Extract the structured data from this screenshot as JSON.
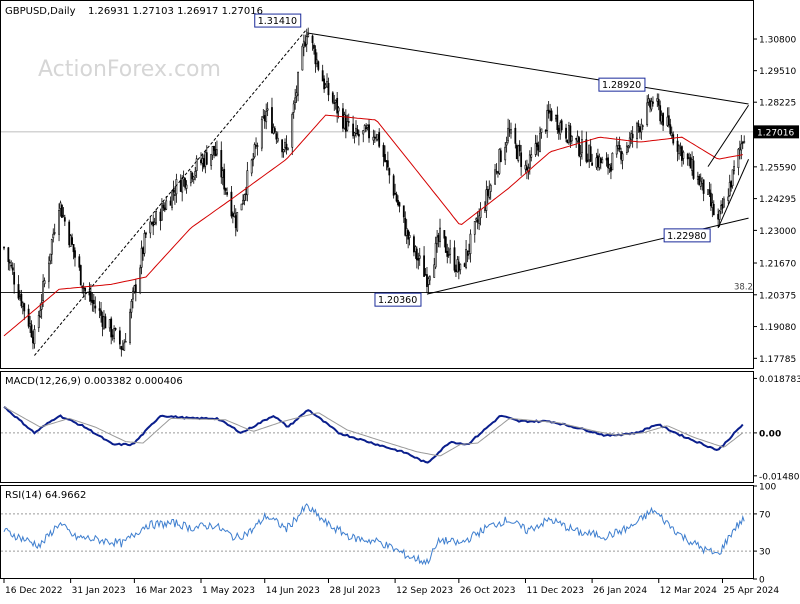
{
  "header": {
    "symbol": "GBPUSD,Daily",
    "ohlc": "1.26931 1.27103 1.26917 1.27016"
  },
  "watermark": "ActionForex.com",
  "colors": {
    "candle": "#000000",
    "sma": "#d40000",
    "macd": "#0a1e8c",
    "signal": "#9a9a9a",
    "rsi": "#3f7fcf",
    "trendline": "#000000",
    "grid": "#c8c8c8",
    "label_border": "#1a2a9a",
    "price_tag_bg": "#000000"
  },
  "chart_data": [
    {
      "type": "candlestick",
      "panel": "price",
      "ylim": [
        1.1735,
        1.3235
      ],
      "y_ticks": [
        "1.30800",
        "1.29510",
        "1.28225",
        "1.26935",
        "1.25590",
        "1.24295",
        "1.23000",
        "1.21670",
        "1.20375",
        "1.19080",
        "1.17785"
      ],
      "current_price": "1.27016",
      "current_value": 1.27016,
      "retracement_label": "38.2",
      "retracement_level": 1.2047,
      "labels": [
        {
          "text": "1.31410",
          "date": "2023-07-13",
          "value": 1.3141
        },
        {
          "text": "1.28920",
          "date": "2024-03-08",
          "value": 1.2892
        },
        {
          "text": "1.20360",
          "date": "2023-10-04",
          "value": 1.2036
        },
        {
          "text": "1.22980",
          "date": "2024-04-22",
          "value": 1.2298
        }
      ],
      "price_anchors": [
        [
          "2022-12-16",
          1.223
        ],
        [
          "2023-01-06",
          1.186
        ],
        [
          "2023-01-23",
          1.242
        ],
        [
          "2023-02-10",
          1.205
        ],
        [
          "2023-03-08",
          1.182
        ],
        [
          "2023-03-24",
          1.228
        ],
        [
          "2023-04-14",
          1.248
        ],
        [
          "2023-05-10",
          1.263
        ],
        [
          "2023-05-25",
          1.234
        ],
        [
          "2023-06-15",
          1.278
        ],
        [
          "2023-06-29",
          1.262
        ],
        [
          "2023-07-13",
          1.312
        ],
        [
          "2023-07-26",
          1.288
        ],
        [
          "2023-08-14",
          1.268
        ],
        [
          "2023-08-30",
          1.27
        ],
        [
          "2023-09-22",
          1.225
        ],
        [
          "2023-10-04",
          1.211
        ],
        [
          "2023-10-13",
          1.227
        ],
        [
          "2023-10-27",
          1.213
        ],
        [
          "2023-11-15",
          1.245
        ],
        [
          "2023-11-29",
          1.27
        ],
        [
          "2023-12-12",
          1.254
        ],
        [
          "2023-12-28",
          1.278
        ],
        [
          "2024-01-17",
          1.264
        ],
        [
          "2024-02-05",
          1.256
        ],
        [
          "2024-02-22",
          1.267
        ],
        [
          "2024-03-08",
          1.283
        ],
        [
          "2024-03-28",
          1.262
        ],
        [
          "2024-04-12",
          1.247
        ],
        [
          "2024-04-22",
          1.233
        ],
        [
          "2024-05-03",
          1.254
        ],
        [
          "2024-05-10",
          1.27
        ]
      ],
      "sma_anchors": [
        [
          "2022-12-16",
          1.187
        ],
        [
          "2023-01-23",
          1.206
        ],
        [
          "2023-02-28",
          1.208
        ],
        [
          "2023-03-24",
          1.211
        ],
        [
          "2023-04-24",
          1.231
        ],
        [
          "2023-05-25",
          1.244
        ],
        [
          "2023-06-29",
          1.259
        ],
        [
          "2023-07-26",
          1.277
        ],
        [
          "2023-08-30",
          1.275
        ],
        [
          "2023-09-22",
          1.258
        ],
        [
          "2023-10-27",
          1.232
        ],
        [
          "2023-11-29",
          1.247
        ],
        [
          "2023-12-28",
          1.262
        ],
        [
          "2024-01-31",
          1.268
        ],
        [
          "2024-02-28",
          1.266
        ],
        [
          "2024-03-28",
          1.268
        ],
        [
          "2024-04-22",
          1.259
        ],
        [
          "2024-05-10",
          1.261
        ]
      ],
      "trendlines": [
        {
          "from": [
            "2023-07-13",
            1.3105
          ],
          "to": [
            "2024-05-13",
            1.2815
          ]
        },
        {
          "from": [
            "2023-10-04",
            1.204
          ],
          "to": [
            "2024-05-13",
            1.235
          ]
        },
        {
          "from": [
            "2023-01-06",
            1.179
          ],
          "to": [
            "2023-07-13",
            1.312
          ],
          "style": "dashed"
        },
        {
          "from": [
            "2024-04-15",
            1.256
          ],
          "to": [
            "2024-05-13",
            1.281
          ]
        },
        {
          "from": [
            "2024-04-22",
            1.231
          ],
          "to": [
            "2024-05-13",
            1.259
          ]
        }
      ]
    },
    {
      "type": "line",
      "panel": "macd",
      "title": "MACD(12,26,9) 0.003382 0.000406",
      "ylim": [
        -0.01728,
        0.021
      ],
      "y_ticks": [
        "0.018783",
        "0.00",
        "-0.014806"
      ],
      "tick_values": [
        0.018783,
        0.0,
        -0.014806
      ],
      "zero_label": "0.00",
      "series": [
        {
          "name": "MACD",
          "anchors": [
            [
              "2022-12-16",
              0.009
            ],
            [
              "2023-01-06",
              0.0
            ],
            [
              "2023-01-23",
              0.006
            ],
            [
              "2023-02-10",
              0.002
            ],
            [
              "2023-03-01",
              -0.004
            ],
            [
              "2023-03-15",
              -0.004
            ],
            [
              "2023-04-03",
              0.006
            ],
            [
              "2023-04-24",
              0.005
            ],
            [
              "2023-05-12",
              0.005
            ],
            [
              "2023-05-29",
              0.0
            ],
            [
              "2023-06-20",
              0.006
            ],
            [
              "2023-06-30",
              0.002
            ],
            [
              "2023-07-14",
              0.008
            ],
            [
              "2023-08-04",
              0.0
            ],
            [
              "2023-08-24",
              -0.003
            ],
            [
              "2023-09-20",
              -0.007
            ],
            [
              "2023-10-04",
              -0.0105
            ],
            [
              "2023-10-20",
              -0.003
            ],
            [
              "2023-11-01",
              -0.004
            ],
            [
              "2023-11-24",
              0.006
            ],
            [
              "2023-12-06",
              0.004
            ],
            [
              "2023-12-28",
              0.004
            ],
            [
              "2024-01-22",
              0.001
            ],
            [
              "2024-02-05",
              -0.001
            ],
            [
              "2024-02-26",
              0.0
            ],
            [
              "2024-03-11",
              0.003
            ],
            [
              "2024-03-28",
              -0.001
            ],
            [
              "2024-04-22",
              -0.006
            ],
            [
              "2024-05-10",
              0.0034
            ]
          ]
        },
        {
          "name": "Signal",
          "anchors": [
            [
              "2022-12-16",
              0.009
            ],
            [
              "2023-01-10",
              0.002
            ],
            [
              "2023-01-30",
              0.005
            ],
            [
              "2023-02-17",
              0.002
            ],
            [
              "2023-03-10",
              -0.003
            ],
            [
              "2023-03-22",
              -0.0035
            ],
            [
              "2023-04-10",
              0.005
            ],
            [
              "2023-05-18",
              0.0045
            ],
            [
              "2023-06-06",
              0.0005
            ],
            [
              "2023-06-27",
              0.004
            ],
            [
              "2023-07-21",
              0.007
            ],
            [
              "2023-08-10",
              0.001
            ],
            [
              "2023-09-01",
              -0.0025
            ],
            [
              "2023-09-27",
              -0.0065
            ],
            [
              "2023-10-13",
              -0.008
            ],
            [
              "2023-10-27",
              -0.004
            ],
            [
              "2023-11-08",
              -0.0035
            ],
            [
              "2023-11-30",
              0.005
            ],
            [
              "2024-01-03",
              0.0035
            ],
            [
              "2024-01-29",
              0.0005
            ],
            [
              "2024-02-12",
              -0.0008
            ],
            [
              "2024-03-01",
              0.0
            ],
            [
              "2024-03-18",
              0.0025
            ],
            [
              "2024-04-05",
              -0.0015
            ],
            [
              "2024-04-26",
              -0.005
            ],
            [
              "2024-05-10",
              0.0004
            ]
          ]
        }
      ]
    },
    {
      "type": "line",
      "panel": "rsi",
      "title": "RSI(14) 64.9662",
      "ylim": [
        0,
        100
      ],
      "y_ticks": [
        "100",
        "70",
        "30",
        "0"
      ],
      "tick_values": [
        100,
        70,
        30,
        0
      ],
      "series": [
        {
          "name": "RSI",
          "anchors": [
            [
              "2022-12-16",
              52
            ],
            [
              "2023-01-03",
              40
            ],
            [
              "2023-01-10",
              36
            ],
            [
              "2023-01-23",
              60
            ],
            [
              "2023-02-03",
              45
            ],
            [
              "2023-02-10",
              44
            ],
            [
              "2023-03-01",
              40
            ],
            [
              "2023-03-08",
              38
            ],
            [
              "2023-03-24",
              58
            ],
            [
              "2023-04-14",
              60
            ],
            [
              "2023-04-24",
              55
            ],
            [
              "2023-05-10",
              58
            ],
            [
              "2023-05-25",
              44
            ],
            [
              "2023-06-05",
              52
            ],
            [
              "2023-06-15",
              68
            ],
            [
              "2023-06-29",
              54
            ],
            [
              "2023-07-13",
              78
            ],
            [
              "2023-07-28",
              58
            ],
            [
              "2023-08-14",
              44
            ],
            [
              "2023-09-01",
              40
            ],
            [
              "2023-09-22",
              24
            ],
            [
              "2023-10-04",
              18
            ],
            [
              "2023-10-13",
              42
            ],
            [
              "2023-10-27",
              38
            ],
            [
              "2023-11-15",
              56
            ],
            [
              "2023-11-29",
              64
            ],
            [
              "2023-12-12",
              52
            ],
            [
              "2023-12-28",
              64
            ],
            [
              "2024-01-17",
              50
            ],
            [
              "2024-02-05",
              46
            ],
            [
              "2024-02-22",
              56
            ],
            [
              "2024-03-08",
              74
            ],
            [
              "2024-03-28",
              46
            ],
            [
              "2024-04-12",
              32
            ],
            [
              "2024-04-22",
              26
            ],
            [
              "2024-05-03",
              54
            ],
            [
              "2024-05-10",
              65
            ]
          ]
        }
      ]
    }
  ],
  "x_axis": {
    "labels": [
      {
        "text": "16 Dec 2022",
        "date": "2022-12-16"
      },
      {
        "text": "31 Jan 2023",
        "date": "2023-01-31"
      },
      {
        "text": "16 Mar 2023",
        "date": "2023-03-16"
      },
      {
        "text": "1 May 2023",
        "date": "2023-05-01"
      },
      {
        "text": "14 Jun 2023",
        "date": "2023-06-14"
      },
      {
        "text": "28 Jul 2023",
        "date": "2023-07-28"
      },
      {
        "text": "12 Sep 2023",
        "date": "2023-09-12"
      },
      {
        "text": "26 Oct 2023",
        "date": "2023-10-26"
      },
      {
        "text": "11 Dec 2023",
        "date": "2023-12-11"
      },
      {
        "text": "26 Jan 2024",
        "date": "2024-01-26"
      },
      {
        "text": "12 Mar 2024",
        "date": "2024-03-12"
      },
      {
        "text": "25 Apr 2024",
        "date": "2024-04-25"
      }
    ],
    "range": [
      "2022-12-16",
      "2024-05-14"
    ]
  }
}
